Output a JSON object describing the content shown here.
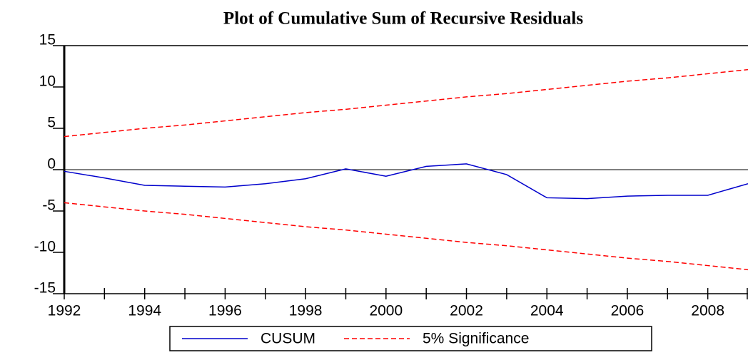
{
  "chart_data": {
    "type": "line",
    "title": "Plot of Cumulative Sum of Recursive Residuals",
    "x": [
      1992,
      1993,
      1994,
      1995,
      1996,
      1997,
      1998,
      1999,
      2000,
      2001,
      2002,
      2003,
      2004,
      2005,
      2006,
      2007,
      2008,
      2009
    ],
    "series": [
      {
        "name": "CUSUM",
        "color": "#0000cc",
        "dash": false,
        "values": [
          -0.2,
          -1.0,
          -1.9,
          -2.0,
          -2.1,
          -1.7,
          -1.1,
          0.1,
          -0.8,
          0.4,
          0.7,
          -0.6,
          -3.4,
          -3.5,
          -3.2,
          -3.1,
          -3.1,
          -1.7
        ]
      },
      {
        "name": "5% Significance",
        "color": "#ff0000",
        "dash": true,
        "values": [
          4.0,
          4.5,
          5.0,
          5.4,
          5.9,
          6.4,
          6.9,
          7.3,
          7.8,
          8.3,
          8.8,
          9.2,
          9.7,
          10.2,
          10.7,
          11.1,
          11.6,
          12.1
        ],
        "lower_values": [
          -4.0,
          -4.5,
          -5.0,
          -5.4,
          -5.9,
          -6.4,
          -6.9,
          -7.3,
          -7.8,
          -8.3,
          -8.8,
          -9.2,
          -9.7,
          -10.2,
          -10.7,
          -11.1,
          -11.6,
          -12.1
        ]
      }
    ],
    "xlim": [
      1992,
      2009
    ],
    "xticks": [
      1992,
      1994,
      1996,
      1998,
      2000,
      2002,
      2004,
      2006,
      2008
    ],
    "xminor_ticks": [
      1993,
      1995,
      1997,
      1999,
      2001,
      2003,
      2005,
      2007,
      2009
    ],
    "ylim": [
      -15,
      15
    ],
    "yticks": [
      -15,
      -10,
      -5,
      0,
      5,
      10,
      15
    ],
    "zero_line": true,
    "legend": "bottom"
  }
}
